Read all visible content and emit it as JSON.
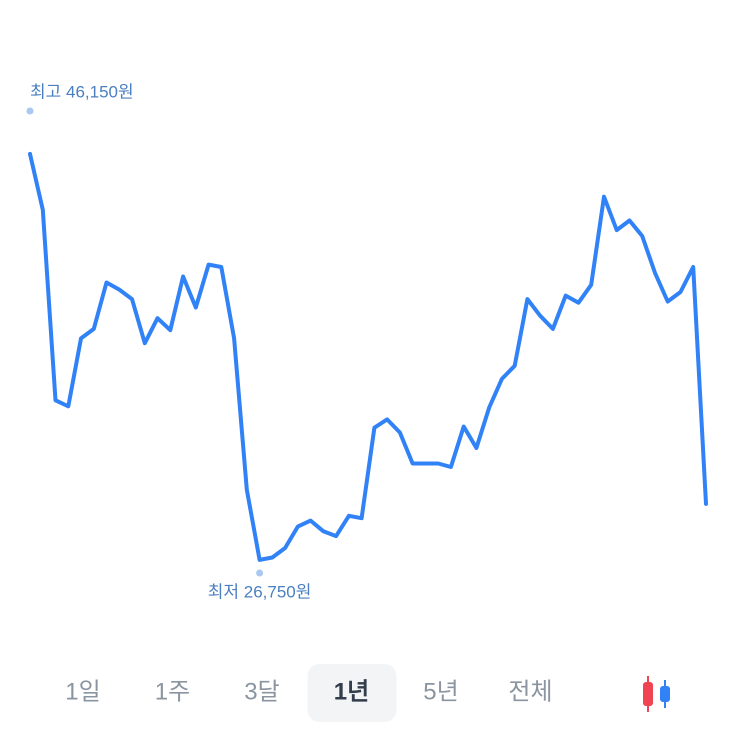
{
  "chart_data": {
    "type": "line",
    "color": "#3182f6",
    "values": [
      44350,
      42000,
      34000,
      33750,
      36600,
      37000,
      38950,
      38650,
      38250,
      36400,
      37450,
      36950,
      39200,
      37900,
      39700,
      39600,
      36600,
      30250,
      27300,
      27400,
      27800,
      28700,
      28950,
      28500,
      28300,
      29150,
      29050,
      32850,
      33200,
      32650,
      31350,
      31350,
      31350,
      31200,
      32900,
      32000,
      33700,
      34900,
      35450,
      38250,
      37550,
      37000,
      38400,
      38100,
      38850,
      42550,
      41150,
      41550,
      40900,
      39350,
      38150,
      38550,
      39600,
      29650
    ],
    "high": {
      "value": 46150,
      "label": "최고 46,150원"
    },
    "low": {
      "value": 26750,
      "label": "최저 26,750원"
    }
  },
  "tabs": [
    "1일",
    "1주",
    "3달",
    "1년",
    "5년",
    "전체"
  ],
  "selected_tab": 3
}
